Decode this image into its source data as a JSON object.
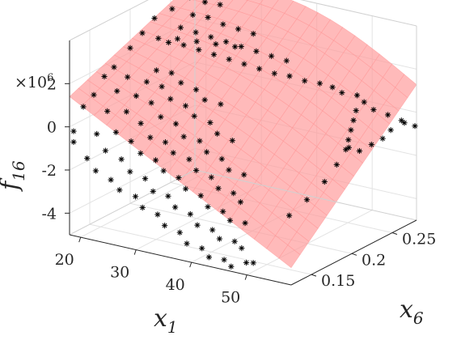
{
  "chart_data": {
    "type": "scatter",
    "surface": true,
    "xlabel": "x",
    "xlabel_sub": "1",
    "ylabel": "x",
    "ylabel_sub": "6",
    "zlabel": "f",
    "zlabel_sub": "16",
    "exponent_base": "×10",
    "exponent_power": "6",
    "xlim": [
      18,
      58
    ],
    "ylim": [
      0.125,
      0.28
    ],
    "zlim": [
      -5,
      4
    ],
    "xticks": [
      "20",
      "30",
      "40",
      "50"
    ],
    "xtick_values": [
      20,
      30,
      40,
      50
    ],
    "yticks": [
      "0.15",
      "0.2",
      "0.25"
    ],
    "ytick_values": [
      0.15,
      0.2,
      0.25
    ],
    "zticks": [
      "2",
      "0",
      "-2",
      "-4"
    ],
    "ztick_values": [
      2,
      0,
      -2,
      -4
    ],
    "grid": true,
    "surface_color": "#ff9999",
    "marker": "*",
    "marker_color": "#000000",
    "series": [
      {
        "values": [
          [
            18,
            0.13,
            -0.8
          ],
          [
            18,
            0.13,
            -0.3
          ],
          [
            18,
            0.142,
            0.6
          ],
          [
            18,
            0.155,
            0.9
          ],
          [
            18,
            0.168,
            1.5
          ],
          [
            18,
            0.18,
            1.7
          ],
          [
            20,
            0.133,
            -1.5
          ],
          [
            20,
            0.145,
            -0.6
          ],
          [
            20,
            0.158,
            0.2
          ],
          [
            20,
            0.17,
            0.9
          ],
          [
            20,
            0.183,
            1.3
          ],
          [
            22,
            0.13,
            -1.9
          ],
          [
            22,
            0.142,
            -1.2
          ],
          [
            22,
            0.155,
            -0.6
          ],
          [
            22,
            0.168,
            0.1
          ],
          [
            22,
            0.18,
            0.6
          ],
          [
            22,
            0.193,
            1.0
          ],
          [
            22,
            0.205,
            1.3
          ],
          [
            24,
            0.135,
            -2.3
          ],
          [
            24,
            0.148,
            -1.6
          ],
          [
            24,
            0.16,
            -1.0
          ],
          [
            24,
            0.172,
            -0.4
          ],
          [
            24,
            0.185,
            0.3
          ],
          [
            24,
            0.198,
            0.8
          ],
          [
            24,
            0.21,
            1.2
          ],
          [
            26,
            0.132,
            -2.6
          ],
          [
            26,
            0.145,
            -2.0
          ],
          [
            26,
            0.158,
            -1.4
          ],
          [
            26,
            0.17,
            -0.9
          ],
          [
            26,
            0.183,
            -0.2
          ],
          [
            26,
            0.195,
            0.4
          ],
          [
            26,
            0.208,
            0.9
          ],
          [
            28,
            0.138,
            -2.9
          ],
          [
            28,
            0.15,
            -2.3
          ],
          [
            28,
            0.163,
            -1.7
          ],
          [
            28,
            0.175,
            -1.1
          ],
          [
            28,
            0.188,
            -0.5
          ],
          [
            28,
            0.2,
            0.1
          ],
          [
            28,
            0.213,
            0.6
          ],
          [
            30,
            0.133,
            -3.2
          ],
          [
            30,
            0.146,
            -2.7
          ],
          [
            30,
            0.159,
            -2.0
          ],
          [
            30,
            0.171,
            -1.4
          ],
          [
            30,
            0.184,
            -0.9
          ],
          [
            30,
            0.197,
            -0.2
          ],
          [
            30,
            0.21,
            0.3
          ],
          [
            32,
            0.138,
            -3.5
          ],
          [
            32,
            0.151,
            -2.9
          ],
          [
            32,
            0.164,
            -2.3
          ],
          [
            32,
            0.177,
            -1.7
          ],
          [
            32,
            0.19,
            -1.1
          ],
          [
            32,
            0.203,
            -0.5
          ],
          [
            32,
            0.216,
            0.1
          ],
          [
            34,
            0.133,
            -3.8
          ],
          [
            34,
            0.146,
            -3.2
          ],
          [
            34,
            0.159,
            -2.6
          ],
          [
            34,
            0.172,
            -2.0
          ],
          [
            34,
            0.185,
            -1.4
          ],
          [
            34,
            0.198,
            -0.8
          ],
          [
            36,
            0.138,
            -4.1
          ],
          [
            36,
            0.151,
            -3.5
          ],
          [
            36,
            0.164,
            -2.9
          ],
          [
            36,
            0.177,
            -2.3
          ],
          [
            36,
            0.19,
            -1.7
          ],
          [
            36,
            0.203,
            -1.1
          ],
          [
            38,
            0.133,
            -4.4
          ],
          [
            38,
            0.146,
            -3.8
          ],
          [
            38,
            0.159,
            -3.2
          ],
          [
            38,
            0.172,
            -2.6
          ],
          [
            38,
            0.185,
            -2.0
          ],
          [
            40,
            0.138,
            -4.6
          ],
          [
            40,
            0.151,
            -4.0
          ],
          [
            40,
            0.164,
            -3.4
          ],
          [
            40,
            0.177,
            -2.8
          ],
          [
            40,
            0.19,
            -2.2
          ],
          [
            42,
            0.133,
            -4.8
          ],
          [
            42,
            0.146,
            -4.2
          ],
          [
            42,
            0.159,
            -3.6
          ],
          [
            42,
            0.172,
            -3.0
          ],
          [
            44,
            0.138,
            -4.9
          ],
          [
            44,
            0.151,
            -4.3
          ],
          [
            44,
            0.164,
            -3.7
          ],
          [
            46,
            0.133,
            -5.0
          ],
          [
            46,
            0.146,
            -4.4
          ],
          [
            48,
            0.138,
            -4.8
          ],
          [
            50,
            0.133,
            -4.6
          ],
          [
            54,
            0.15,
            -2.5
          ],
          [
            55,
            0.165,
            -2.0
          ],
          [
            56,
            0.18,
            -1.4
          ],
          [
            56,
            0.195,
            -0.9
          ],
          [
            56,
            0.21,
            -0.4
          ],
          [
            54,
            0.22,
            -0.8
          ],
          [
            53,
            0.23,
            -0.6
          ],
          [
            52,
            0.24,
            -0.4
          ],
          [
            51,
            0.25,
            -0.2
          ],
          [
            50,
            0.26,
            0.0
          ],
          [
            55,
            0.23,
            -1.0
          ],
          [
            56,
            0.238,
            -0.8
          ],
          [
            57,
            0.245,
            -0.6
          ],
          [
            57,
            0.255,
            -0.4
          ],
          [
            58,
            0.265,
            -0.2
          ],
          [
            18,
            0.2,
            2.2
          ],
          [
            18,
            0.215,
            2.6
          ],
          [
            18,
            0.23,
            3.0
          ],
          [
            19,
            0.245,
            3.2
          ],
          [
            20,
            0.26,
            3.5
          ],
          [
            20,
            0.272,
            3.7
          ],
          [
            22,
            0.22,
            2.3
          ],
          [
            22,
            0.235,
            2.7
          ],
          [
            22,
            0.25,
            3.0
          ],
          [
            22,
            0.265,
            3.3
          ],
          [
            24,
            0.225,
            2.2
          ],
          [
            24,
            0.24,
            2.5
          ],
          [
            24,
            0.255,
            2.9
          ],
          [
            24,
            0.27,
            3.2
          ],
          [
            26,
            0.23,
            2.0
          ],
          [
            26,
            0.245,
            2.3
          ],
          [
            26,
            0.26,
            2.6
          ],
          [
            28,
            0.235,
            1.8
          ],
          [
            28,
            0.25,
            2.1
          ],
          [
            28,
            0.265,
            2.4
          ],
          [
            30,
            0.24,
            1.6
          ],
          [
            30,
            0.255,
            1.9
          ],
          [
            30,
            0.27,
            2.2
          ],
          [
            32,
            0.245,
            1.4
          ],
          [
            32,
            0.26,
            1.7
          ],
          [
            34,
            0.25,
            1.2
          ],
          [
            34,
            0.265,
            1.5
          ],
          [
            36,
            0.255,
            1.0
          ],
          [
            36,
            0.27,
            1.3
          ],
          [
            38,
            0.26,
            0.9
          ],
          [
            40,
            0.265,
            0.7
          ],
          [
            42,
            0.27,
            0.6
          ],
          [
            44,
            0.272,
            0.5
          ],
          [
            46,
            0.27,
            0.4
          ],
          [
            48,
            0.275,
            0.3
          ],
          [
            50,
            0.27,
            0.2
          ],
          [
            52,
            0.268,
            0.0
          ],
          [
            54,
            0.272,
            -0.2
          ],
          [
            56,
            0.275,
            -0.4
          ],
          [
            58,
            0.278,
            -0.6
          ],
          [
            30,
            0.2,
            3.2
          ],
          [
            32,
            0.21,
            3.0
          ],
          [
            34,
            0.22,
            2.8
          ],
          [
            28,
            0.19,
            3.4
          ],
          [
            26,
            0.18,
            3.5
          ]
        ]
      }
    ]
  }
}
